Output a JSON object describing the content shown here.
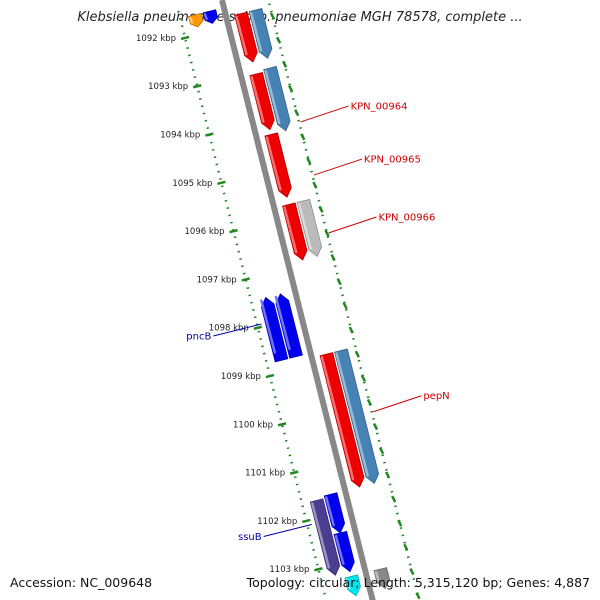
{
  "title": "Klebsiella pneumoniae subsp. pneumoniae MGH 78578, complete ...",
  "footer": {
    "accession": "Accession: NC_009648",
    "topology": "Topology: circular; Length: 5,315,120 bp; Genes: 4,887"
  },
  "colors": {
    "backbone": "#888888",
    "ruler": "#228822",
    "label_red": "#cc0000",
    "label_blue": "#0000aa"
  },
  "ticks": [
    {
      "label": "1092 kbp",
      "kbp": 1092
    },
    {
      "label": "1093 kbp",
      "kbp": 1093
    },
    {
      "label": "1094 kbp",
      "kbp": 1094
    },
    {
      "label": "1095 kbp",
      "kbp": 1095
    },
    {
      "label": "1096 kbp",
      "kbp": 1096
    },
    {
      "label": "1097 kbp",
      "kbp": 1097
    },
    {
      "label": "1098 kbp",
      "kbp": 1098
    },
    {
      "label": "1099 kbp",
      "kbp": 1099
    },
    {
      "label": "1100 kbp",
      "kbp": 1100
    },
    {
      "label": "1101 kbp",
      "kbp": 1101
    },
    {
      "label": "1102 kbp",
      "kbp": 1102
    },
    {
      "label": "1103 kbp",
      "kbp": 1103
    }
  ],
  "genes": [
    {
      "start": 1091.6,
      "end": 1091.85,
      "lane": -2,
      "dir": 1,
      "color": "#ff9900"
    },
    {
      "start": 1091.6,
      "end": 1091.85,
      "lane": -1,
      "dir": 1,
      "color": "#0000ee"
    },
    {
      "start": 1091.8,
      "end": 1092.8,
      "lane": 1,
      "dir": 1,
      "color": "#ee0000"
    },
    {
      "start": 1091.8,
      "end": 1092.8,
      "lane": 2,
      "dir": 1,
      "color": "#4682b4"
    },
    {
      "start": 1093.05,
      "end": 1094.2,
      "lane": 1,
      "dir": 1,
      "color": "#ee0000"
    },
    {
      "start": 1093.0,
      "end": 1094.3,
      "lane": 2,
      "dir": 1,
      "color": "#4682b4"
    },
    {
      "start": 1094.3,
      "end": 1095.6,
      "lane": 1,
      "dir": 1,
      "color": "#ee0000"
    },
    {
      "start": 1095.75,
      "end": 1096.9,
      "lane": 1,
      "dir": 1,
      "color": "#ee0000"
    },
    {
      "start": 1095.75,
      "end": 1096.9,
      "lane": 2,
      "dir": 1,
      "color": "#bbbbbb"
    },
    {
      "start": 1097.45,
      "end": 1098.75,
      "lane": -1,
      "dir": -1,
      "color": "#0000ee"
    },
    {
      "start": 1097.45,
      "end": 1098.75,
      "lane": -2,
      "dir": -1,
      "color": "#0000ee"
    },
    {
      "start": 1098.85,
      "end": 1101.6,
      "lane": 1,
      "dir": 1,
      "color": "#ee0000"
    },
    {
      "start": 1098.85,
      "end": 1101.6,
      "lane": 2,
      "dir": 1,
      "color": "#4682b4"
    },
    {
      "start": 1101.6,
      "end": 1102.4,
      "lane": -1,
      "dir": 1,
      "color": "#0000ee"
    },
    {
      "start": 1101.65,
      "end": 1103.2,
      "lane": -2,
      "dir": 1,
      "color": "#4b3d8f"
    },
    {
      "start": 1102.4,
      "end": 1103.2,
      "lane": -1,
      "dir": 1,
      "color": "#0000ee"
    },
    {
      "start": 1103.3,
      "end": 1103.7,
      "lane": -1,
      "dir": 1,
      "color": "#00e5ee"
    },
    {
      "start": 1103.3,
      "end": 1103.7,
      "lane": 1,
      "dir": 1,
      "color": "#888888"
    }
  ],
  "gene_labels": [
    {
      "name": "KPN_00964",
      "kbp": 1093.8,
      "side": "right",
      "color": "#cc0000"
    },
    {
      "name": "KPN_00965",
      "kbp": 1094.9,
      "side": "right",
      "color": "#cc0000"
    },
    {
      "name": "KPN_00966",
      "kbp": 1096.1,
      "side": "right",
      "color": "#cc0000"
    },
    {
      "name": "pepN",
      "kbp": 1099.8,
      "side": "right",
      "color": "#cc0000"
    },
    {
      "name": "pncB",
      "kbp": 1098.15,
      "side": "left",
      "color": "#0000aa"
    },
    {
      "name": "ssuB",
      "kbp": 1102.3,
      "side": "left",
      "color": "#0000aa"
    }
  ]
}
